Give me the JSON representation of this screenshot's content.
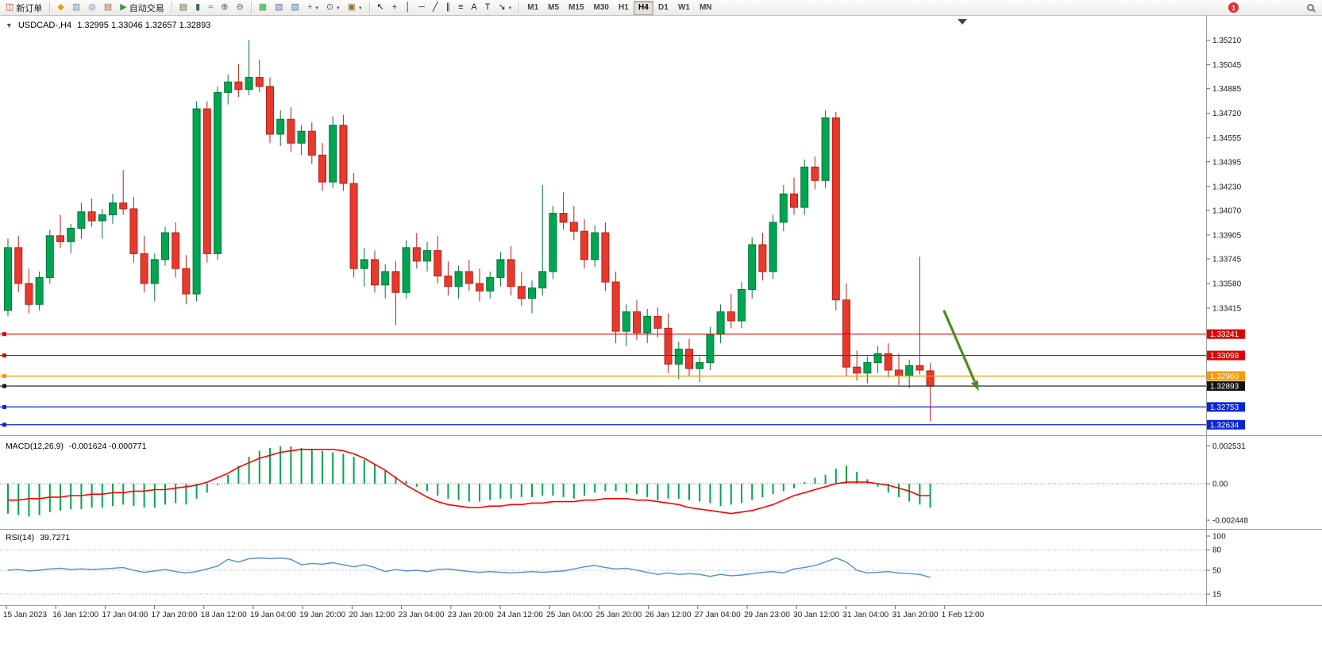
{
  "toolbar": {
    "new_order_label": "新订单",
    "autotrading_label": "自动交易",
    "standard_icons": [
      {
        "name": "metaeditor-icon",
        "glyph": "◆",
        "color": "#d9a514"
      },
      {
        "name": "profile-icon",
        "glyph": "▥",
        "color": "#6b88ab"
      },
      {
        "name": "signals-icon",
        "glyph": "◎",
        "color": "#4d7fb8"
      },
      {
        "name": "market-watch-icon",
        "glyph": "▤",
        "color": "#9a6a3f"
      }
    ],
    "chart_type_icons": [
      {
        "name": "bar-chart-icon",
        "glyph": "▤",
        "color": "#55703f"
      },
      {
        "name": "candlestick-chart-icon",
        "glyph": "▮",
        "color": "#3f6e51"
      },
      {
        "name": "line-chart-icon",
        "glyph": "≈",
        "color": "#4d7fb8"
      },
      {
        "name": "zoom-in-icon",
        "glyph": "⊕",
        "color": "#47617d"
      },
      {
        "name": "zoom-out-icon",
        "glyph": "⊖",
        "color": "#47617d"
      }
    ],
    "window_icons": [
      {
        "name": "tile-windows-icon",
        "glyph": "▦",
        "color": "#2f9e44"
      },
      {
        "name": "indicators-window-icon",
        "glyph": "▧",
        "color": "#5b7aa0"
      },
      {
        "name": "objects-window-icon",
        "glyph": "▨",
        "color": "#5b7aa0"
      }
    ],
    "dropdown_icons": [
      {
        "name": "add-indicator-icon",
        "glyph": "+",
        "color": "#2f7d32",
        "dropdown": true
      },
      {
        "name": "periods-icon",
        "glyph": "⊙",
        "color": "#47617d",
        "dropdown": true
      },
      {
        "name": "templates-icon",
        "glyph": "▣",
        "color": "#8a6d3b",
        "dropdown": true
      }
    ],
    "drawing_icons": [
      {
        "name": "cursor-icon",
        "glyph": "↖",
        "color": "#222"
      },
      {
        "name": "crosshair-icon",
        "glyph": "+",
        "color": "#222"
      },
      {
        "name": "vertical-line-icon",
        "glyph": "│",
        "color": "#222"
      },
      {
        "name": "horizontal-line-icon",
        "glyph": "─",
        "color": "#222"
      },
      {
        "name": "trendline-icon",
        "glyph": "╱",
        "color": "#222"
      },
      {
        "name": "channel-icon",
        "glyph": "∥",
        "color": "#222"
      },
      {
        "name": "fibonacci-icon",
        "glyph": "≡",
        "color": "#222"
      },
      {
        "name": "text-icon",
        "glyph": "A",
        "color": "#222"
      },
      {
        "name": "text-label-icon",
        "glyph": "T",
        "color": "#222"
      },
      {
        "name": "arrows-icon",
        "glyph": "↘",
        "color": "#222",
        "dropdown": true
      }
    ],
    "timeframes": [
      "M1",
      "M5",
      "M15",
      "M30",
      "H1",
      "H4",
      "D1",
      "W1",
      "MN"
    ],
    "active_timeframe": "H4",
    "notification_badge": "1"
  },
  "chart": {
    "symbol_period": "USDCAD-,H4",
    "ohlc_values": "1.32995 1.33046 1.32657 1.32893"
  },
  "chart_data": {
    "type": "candlestick",
    "symbol": "USDCAD-",
    "timeframe": "H4",
    "colors": {
      "up": "#00a651",
      "up_border": "#00743a",
      "down": "#e8392c",
      "down_border": "#b3221a"
    },
    "price_axis": {
      "ticks": [
        "1.35210",
        "1.35045",
        "1.34885",
        "1.34720",
        "1.34555",
        "1.34395",
        "1.34230",
        "1.34070",
        "1.33905",
        "1.33745",
        "1.33580",
        "1.33415"
      ]
    },
    "time_axis": {
      "labels": [
        "15 Jan 2023",
        "16 Jan 12:00",
        "17 Jan 04:00",
        "17 Jan 20:00",
        "18 Jan 12:00",
        "19 Jan 04:00",
        "19 Jan 20:00",
        "20 Jan 12:00",
        "23 Jan 04:00",
        "23 Jan 20:00",
        "24 Jan 12:00",
        "25 Jan 04:00",
        "25 Jan 20:00",
        "26 Jan 12:00",
        "27 Jan 04:00",
        "29 Jan 23:00",
        "30 Jan 12:00",
        "31 Jan 04:00",
        "31 Jan 20:00",
        "1 Feb 12:00"
      ]
    },
    "candles": [
      [
        1.334,
        1.3388,
        1.3336,
        1.3382
      ],
      [
        1.3382,
        1.339,
        1.3352,
        1.3358
      ],
      [
        1.3358,
        1.3368,
        1.3338,
        1.3344
      ],
      [
        1.3344,
        1.3366,
        1.334,
        1.3362
      ],
      [
        1.3362,
        1.3394,
        1.3358,
        1.339
      ],
      [
        1.339,
        1.3404,
        1.3382,
        1.3386
      ],
      [
        1.3386,
        1.3398,
        1.3378,
        1.3395
      ],
      [
        1.3395,
        1.3412,
        1.3388,
        1.3406
      ],
      [
        1.3406,
        1.3415,
        1.3396,
        1.34
      ],
      [
        1.34,
        1.3408,
        1.3388,
        1.3404
      ],
      [
        1.3404,
        1.3418,
        1.3398,
        1.3412
      ],
      [
        1.3412,
        1.3434,
        1.3404,
        1.3408
      ],
      [
        1.3408,
        1.3416,
        1.3372,
        1.3378
      ],
      [
        1.3378,
        1.339,
        1.3352,
        1.3358
      ],
      [
        1.3358,
        1.3378,
        1.3346,
        1.3374
      ],
      [
        1.3374,
        1.3396,
        1.337,
        1.3392
      ],
      [
        1.3392,
        1.3399,
        1.3362,
        1.3368
      ],
      [
        1.3368,
        1.3377,
        1.3344,
        1.3351
      ],
      [
        1.3351,
        1.348,
        1.3346,
        1.3475
      ],
      [
        1.3475,
        1.348,
        1.3372,
        1.3378
      ],
      [
        1.3378,
        1.349,
        1.3374,
        1.3486
      ],
      [
        1.3486,
        1.3498,
        1.3478,
        1.3493
      ],
      [
        1.3493,
        1.3505,
        1.3483,
        1.3488
      ],
      [
        1.3488,
        1.3521,
        1.3484,
        1.3496
      ],
      [
        1.3496,
        1.3508,
        1.3486,
        1.349
      ],
      [
        1.349,
        1.3496,
        1.3452,
        1.3458
      ],
      [
        1.3458,
        1.3474,
        1.345,
        1.3468
      ],
      [
        1.3468,
        1.3476,
        1.3446,
        1.3452
      ],
      [
        1.3452,
        1.3464,
        1.3444,
        1.346
      ],
      [
        1.346,
        1.3466,
        1.3438,
        1.3444
      ],
      [
        1.3444,
        1.3452,
        1.342,
        1.3426
      ],
      [
        1.3426,
        1.347,
        1.3422,
        1.3464
      ],
      [
        1.3464,
        1.3471,
        1.342,
        1.3425
      ],
      [
        1.3425,
        1.3432,
        1.3362,
        1.3368
      ],
      [
        1.3368,
        1.3382,
        1.3356,
        1.3374
      ],
      [
        1.3374,
        1.338,
        1.3352,
        1.3357
      ],
      [
        1.3357,
        1.3371,
        1.3348,
        1.3366
      ],
      [
        1.3366,
        1.3373,
        1.333,
        1.3352
      ],
      [
        1.3352,
        1.3387,
        1.3348,
        1.3382
      ],
      [
        1.3382,
        1.3392,
        1.3368,
        1.3373
      ],
      [
        1.3373,
        1.3386,
        1.3366,
        1.338
      ],
      [
        1.338,
        1.339,
        1.3358,
        1.3363
      ],
      [
        1.3363,
        1.3373,
        1.335,
        1.3356
      ],
      [
        1.3356,
        1.337,
        1.3348,
        1.3366
      ],
      [
        1.3366,
        1.3374,
        1.3353,
        1.3358
      ],
      [
        1.3358,
        1.3368,
        1.3346,
        1.3353
      ],
      [
        1.3353,
        1.3366,
        1.3348,
        1.3362
      ],
      [
        1.3362,
        1.3379,
        1.3356,
        1.3374
      ],
      [
        1.3374,
        1.3383,
        1.335,
        1.3356
      ],
      [
        1.3356,
        1.3366,
        1.3343,
        1.3348
      ],
      [
        1.3348,
        1.336,
        1.3338,
        1.3355
      ],
      [
        1.3355,
        1.3424,
        1.335,
        1.3366
      ],
      [
        1.3366,
        1.341,
        1.3361,
        1.3405
      ],
      [
        1.3405,
        1.3419,
        1.3394,
        1.3399
      ],
      [
        1.3399,
        1.341,
        1.3387,
        1.3393
      ],
      [
        1.3393,
        1.3401,
        1.3368,
        1.3374
      ],
      [
        1.3374,
        1.3397,
        1.3369,
        1.3392
      ],
      [
        1.3392,
        1.3399,
        1.3353,
        1.3359
      ],
      [
        1.3359,
        1.3366,
        1.3318,
        1.3326
      ],
      [
        1.3326,
        1.3344,
        1.3316,
        1.3339
      ],
      [
        1.3339,
        1.3347,
        1.332,
        1.3325
      ],
      [
        1.3325,
        1.3341,
        1.3318,
        1.3336
      ],
      [
        1.3336,
        1.3342,
        1.3322,
        1.3328
      ],
      [
        1.3328,
        1.3338,
        1.3298,
        1.3304
      ],
      [
        1.3304,
        1.3319,
        1.3294,
        1.3314
      ],
      [
        1.3314,
        1.3321,
        1.3296,
        1.3301
      ],
      [
        1.3301,
        1.3309,
        1.3292,
        1.3305
      ],
      [
        1.3305,
        1.3329,
        1.33,
        1.3324
      ],
      [
        1.3324,
        1.3344,
        1.3318,
        1.3339
      ],
      [
        1.3339,
        1.3351,
        1.3328,
        1.3333
      ],
      [
        1.3333,
        1.3359,
        1.3328,
        1.3354
      ],
      [
        1.3354,
        1.3389,
        1.3348,
        1.3384
      ],
      [
        1.3384,
        1.3392,
        1.336,
        1.3366
      ],
      [
        1.3366,
        1.3404,
        1.3361,
        1.3399
      ],
      [
        1.3399,
        1.3424,
        1.3393,
        1.3418
      ],
      [
        1.3418,
        1.3429,
        1.3404,
        1.3409
      ],
      [
        1.3409,
        1.3441,
        1.3404,
        1.3436
      ],
      [
        1.3436,
        1.3443,
        1.3421,
        1.3427
      ],
      [
        1.3427,
        1.3474,
        1.3422,
        1.3469
      ],
      [
        1.3469,
        1.3473,
        1.334,
        1.3347
      ],
      [
        1.3347,
        1.3358,
        1.3296,
        1.3302
      ],
      [
        1.3302,
        1.3313,
        1.3293,
        1.3298
      ],
      [
        1.3298,
        1.3309,
        1.3291,
        1.3305
      ],
      [
        1.3305,
        1.3316,
        1.3298,
        1.3311
      ],
      [
        1.3311,
        1.3318,
        1.3295,
        1.33
      ],
      [
        1.33,
        1.3311,
        1.329,
        1.3296
      ],
      [
        1.3296,
        1.3307,
        1.3288,
        1.3303
      ],
      [
        1.3303,
        1.3376,
        1.3297,
        1.33
      ],
      [
        1.32995,
        1.33046,
        1.32657,
        1.32893
      ]
    ],
    "levels": [
      {
        "price": 1.33241,
        "label": "1.33241",
        "color": "#dd0404"
      },
      {
        "price": 1.33098,
        "label": "1.33098",
        "color": "#dd0404"
      },
      {
        "price": 1.3296,
        "label": "1.32960",
        "color": "#f59b00"
      },
      {
        "price": 1.32893,
        "label": "1.32893",
        "color": "#141414",
        "current": true
      },
      {
        "price": 1.32753,
        "label": "1.32753",
        "color": "#0b24d6"
      },
      {
        "price": 1.32634,
        "label": "1.32634",
        "color": "#0b24d6"
      }
    ],
    "current_price": "1.32893",
    "arrow_annotation": {
      "from_index": 89.3,
      "from_price": 1.334,
      "to_index": 92.5,
      "to_price": 1.3288,
      "color": "#4e8c22"
    },
    "macd": {
      "label": "MACD(12,26,9)",
      "values_label": "-0.001624 -0.000771",
      "scale": [
        "0.002531",
        "0.00",
        "-0.002448"
      ],
      "histogram_color": "#00a651",
      "signal_color": "#ff0000",
      "histogram": [
        -0.002,
        -0.0021,
        -0.0022,
        -0.0021,
        -0.0019,
        -0.0018,
        -0.0017,
        -0.0017,
        -0.0016,
        -0.0016,
        -0.0015,
        -0.0014,
        -0.0015,
        -0.0016,
        -0.0016,
        -0.0014,
        -0.0013,
        -0.0014,
        -0.001,
        -0.0006,
        -0.0001,
        0.0006,
        0.0012,
        0.0018,
        0.0022,
        0.0024,
        0.0025,
        0.0025,
        0.0024,
        0.0023,
        0.0022,
        0.0021,
        0.002,
        0.0018,
        0.0016,
        0.0013,
        0.0009,
        0.0005,
        0.0002,
        -0.0002,
        -0.0005,
        -0.0008,
        -0.001,
        -0.0011,
        -0.0012,
        -0.0012,
        -0.0011,
        -0.001,
        -0.001,
        -0.0009,
        -0.0009,
        -0.0008,
        -0.0008,
        -0.0009,
        -0.001,
        -0.0008,
        -0.0006,
        -0.0005,
        -0.0005,
        -0.0006,
        -0.0007,
        -0.0009,
        -0.0011,
        -0.001,
        -0.001,
        -0.0011,
        -0.0012,
        -0.0013,
        -0.0015,
        -0.0014,
        -0.0013,
        -0.0011,
        -0.0009,
        -0.0007,
        -0.0005,
        -0.0003,
        0.0001,
        0.0004,
        0.0006,
        0.001,
        0.0012,
        0.0008,
        0.0003,
        -0.0002,
        -0.0006,
        -0.0009,
        -0.0012,
        -0.0014,
        -0.0016
      ],
      "signal": [
        -0.0011,
        -0.0011,
        -0.001,
        -0.001,
        -0.0009,
        -0.0009,
        -0.0008,
        -0.0008,
        -0.0007,
        -0.0007,
        -0.0006,
        -0.0006,
        -0.0005,
        -0.0005,
        -0.0004,
        -0.0004,
        -0.0003,
        -0.0002,
        -0.0001,
        0.0001,
        0.0004,
        0.0007,
        0.0011,
        0.0014,
        0.0017,
        0.0019,
        0.0021,
        0.0022,
        0.0023,
        0.0023,
        0.0023,
        0.0023,
        0.0022,
        0.002,
        0.0017,
        0.0013,
        0.0009,
        0.0004,
        -0.0001,
        -0.0005,
        -0.0009,
        -0.0012,
        -0.0014,
        -0.0015,
        -0.0016,
        -0.0016,
        -0.0015,
        -0.0015,
        -0.0014,
        -0.0014,
        -0.0013,
        -0.0013,
        -0.0012,
        -0.0012,
        -0.0012,
        -0.0011,
        -0.0011,
        -0.001,
        -0.001,
        -0.001,
        -0.0011,
        -0.0011,
        -0.0012,
        -0.0013,
        -0.0014,
        -0.0016,
        -0.0017,
        -0.0018,
        -0.0019,
        -0.002,
        -0.0019,
        -0.0018,
        -0.0016,
        -0.0014,
        -0.0011,
        -0.0008,
        -0.0006,
        -0.0004,
        -0.0002,
        0.0,
        0.0001,
        0.0001,
        0.0001,
        0.0,
        -0.0001,
        -0.0003,
        -0.0005,
        -0.0008,
        -0.0008
      ]
    },
    "rsi": {
      "label": "RSI(14)",
      "value_label": "39.7271",
      "scale": [
        "100",
        "80",
        "50",
        "15"
      ],
      "levels": [
        80,
        50,
        15
      ],
      "line_color": "#4f8fce",
      "values": [
        50,
        51,
        49,
        50,
        52,
        53,
        51,
        52,
        51,
        52,
        53,
        54,
        50,
        47,
        49,
        51,
        48,
        46,
        48,
        52,
        56,
        66,
        62,
        67,
        68,
        67,
        68,
        66,
        58,
        60,
        59,
        61,
        58,
        55,
        58,
        54,
        48,
        51,
        49,
        50,
        48,
        51,
        52,
        50,
        48,
        47,
        48,
        47,
        46,
        47,
        48,
        47,
        48,
        49,
        52,
        55,
        57,
        54,
        52,
        53,
        50,
        47,
        44,
        46,
        44,
        45,
        44,
        41,
        44,
        42,
        43,
        45,
        47,
        48,
        46,
        52,
        54,
        57,
        62,
        68,
        62,
        50,
        46,
        47,
        48,
        46,
        45,
        44,
        39.7
      ]
    }
  }
}
